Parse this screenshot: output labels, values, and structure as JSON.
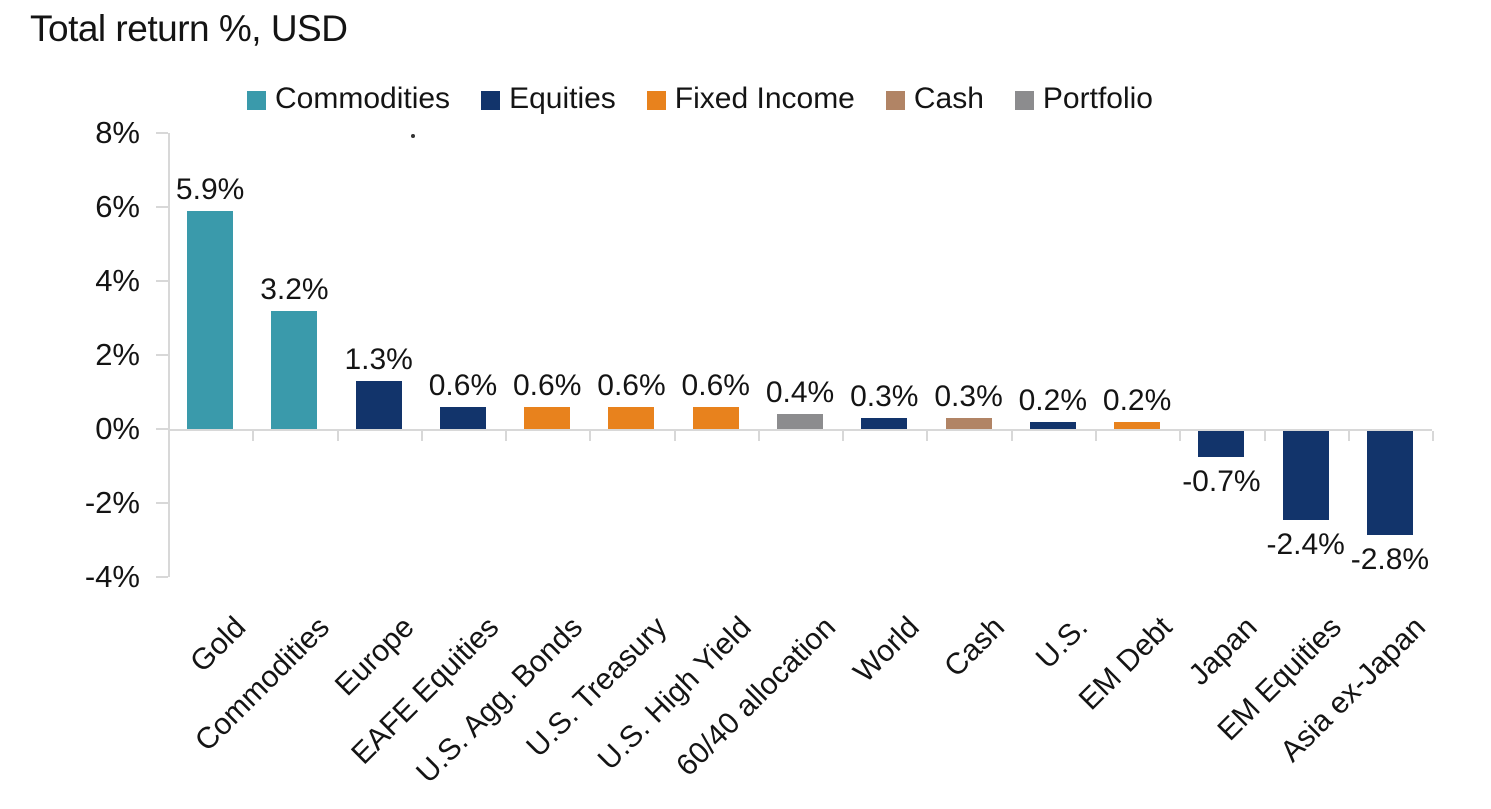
{
  "title": "Total return %, USD",
  "chart_data": {
    "type": "bar",
    "title": "Total return %, USD",
    "unit": "%",
    "xlabel": "",
    "ylabel": "",
    "ylim": [
      -4,
      8
    ],
    "grid": false,
    "legend_position": "top",
    "style": {
      "background": "#FFFFFF",
      "axis_color": "#D8D8D8",
      "text_color": "#141414"
    },
    "yticks": [
      {
        "label": "8%",
        "value": 8
      },
      {
        "label": "6%",
        "value": 6
      },
      {
        "label": "4%",
        "value": 4
      },
      {
        "label": "2%",
        "value": 2
      },
      {
        "label": "0%",
        "value": 0
      },
      {
        "label": "-2%",
        "value": -2
      },
      {
        "label": "-4%",
        "value": -4
      }
    ],
    "legend": [
      {
        "label": "Commodities",
        "color": "#3A9AAB"
      },
      {
        "label": "Equities",
        "color": "#12346B"
      },
      {
        "label": "Fixed Income",
        "color": "#E8821D"
      },
      {
        "label": "Cash",
        "color": "#B18465"
      },
      {
        "label": "Portfolio",
        "color": "#8C8C8E"
      }
    ],
    "categories": [
      "Gold",
      "Commodities",
      "Europe",
      "EAFE Equities",
      "U.S. Agg. Bonds",
      "U.S. Treasury",
      "U.S. High Yield",
      "60/40 allocation",
      "World",
      "Cash",
      "U.S.",
      "EM Debt",
      "Japan",
      "EM Equities",
      "Asia ex-Japan"
    ],
    "values": [
      5.9,
      3.2,
      1.3,
      0.6,
      0.6,
      0.6,
      0.6,
      0.4,
      0.3,
      0.3,
      0.2,
      0.2,
      -0.7,
      -2.4,
      -2.8
    ],
    "bars": [
      {
        "category": "Gold",
        "value": 5.9,
        "label": "5.9%",
        "group": "Commodities"
      },
      {
        "category": "Commodities",
        "value": 3.2,
        "label": "3.2%",
        "group": "Commodities"
      },
      {
        "category": "Europe",
        "value": 1.3,
        "label": "1.3%",
        "group": "Equities"
      },
      {
        "category": "EAFE Equities",
        "value": 0.6,
        "label": "0.6%",
        "group": "Equities"
      },
      {
        "category": "U.S. Agg. Bonds",
        "value": 0.6,
        "label": "0.6%",
        "group": "Fixed Income"
      },
      {
        "category": "U.S. Treasury",
        "value": 0.6,
        "label": "0.6%",
        "group": "Fixed Income"
      },
      {
        "category": "U.S. High Yield",
        "value": 0.6,
        "label": "0.6%",
        "group": "Fixed Income"
      },
      {
        "category": "60/40 allocation",
        "value": 0.4,
        "label": "0.4%",
        "group": "Portfolio"
      },
      {
        "category": "World",
        "value": 0.3,
        "label": "0.3%",
        "group": "Equities"
      },
      {
        "category": "Cash",
        "value": 0.3,
        "label": "0.3%",
        "group": "Cash"
      },
      {
        "category": "U.S.",
        "value": 0.2,
        "label": "0.2%",
        "group": "Equities"
      },
      {
        "category": "EM Debt",
        "value": 0.2,
        "label": "0.2%",
        "group": "Fixed Income"
      },
      {
        "category": "Japan",
        "value": -0.7,
        "label": "-0.7%",
        "group": "Equities"
      },
      {
        "category": "EM Equities",
        "value": -2.4,
        "label": "-2.4%",
        "group": "Equities"
      },
      {
        "category": "Asia ex-Japan",
        "value": -2.8,
        "label": "-2.8%",
        "group": "Equities"
      }
    ]
  }
}
